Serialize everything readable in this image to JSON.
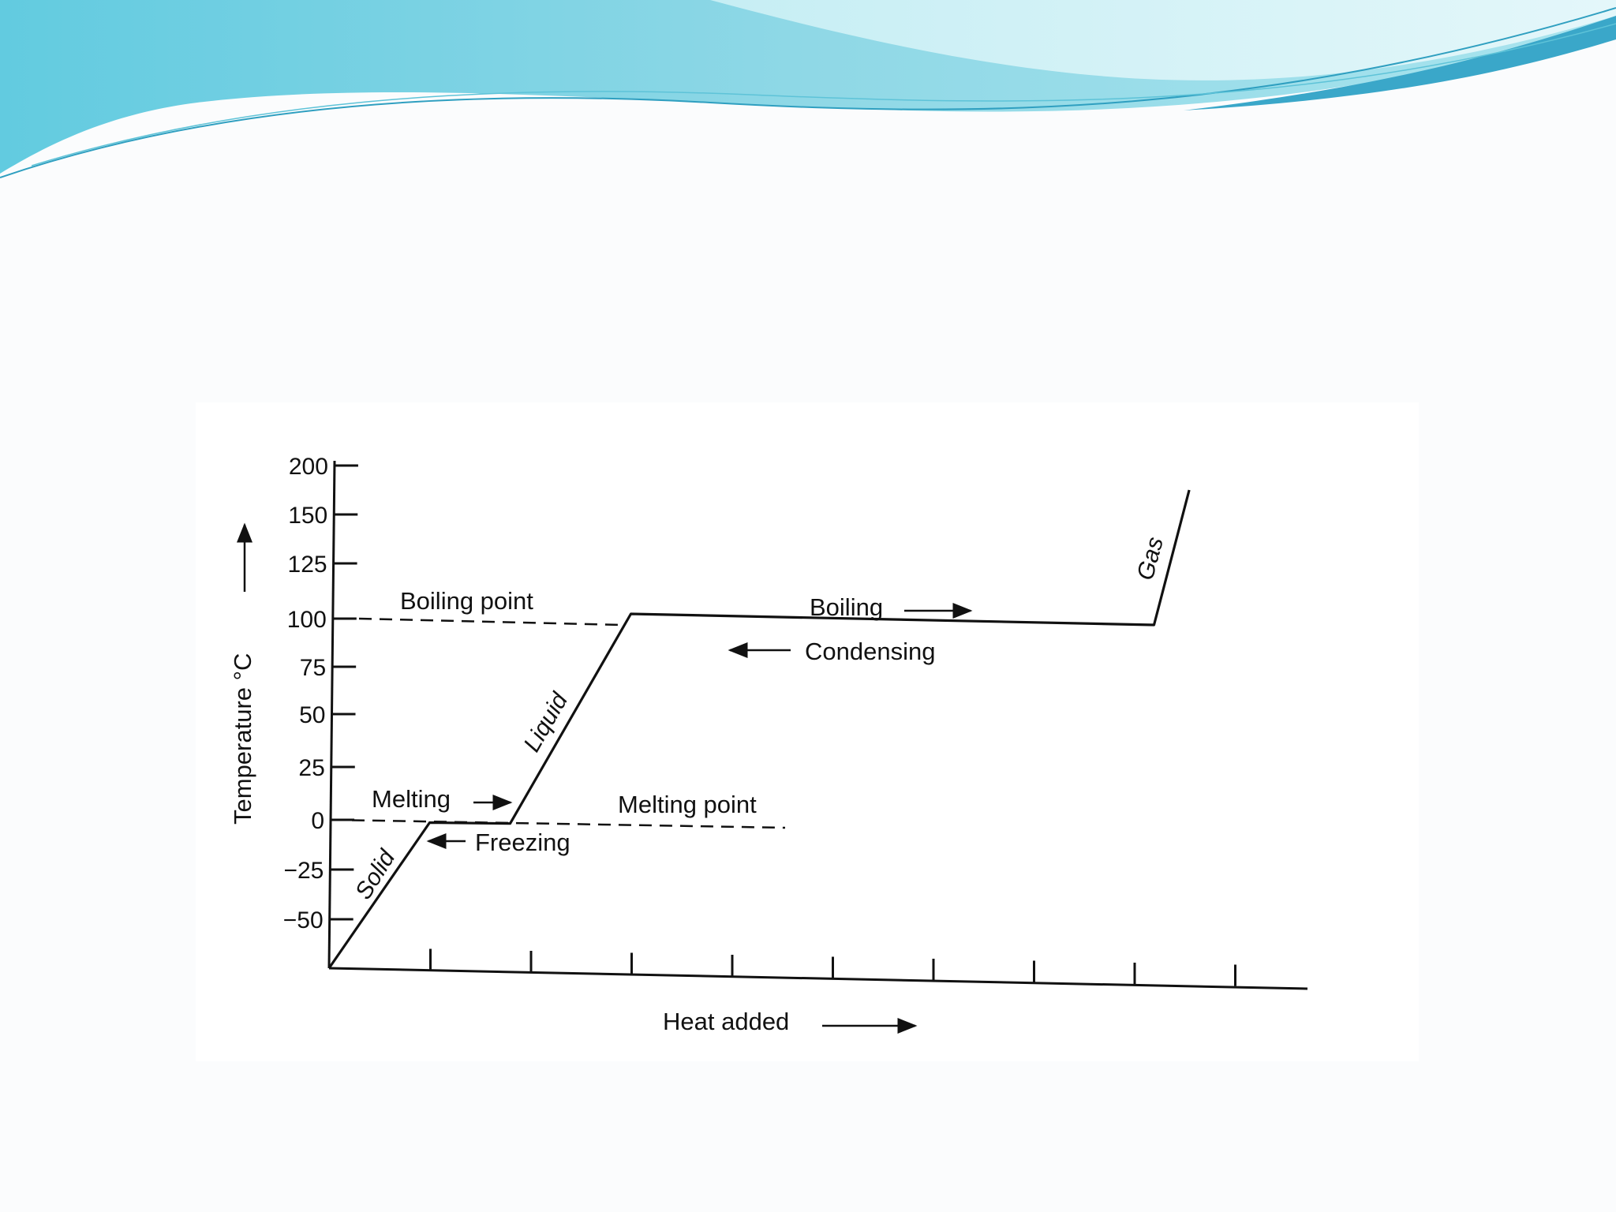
{
  "slide": {
    "banner_colors": [
      "#59c5dc",
      "#8fd8e6",
      "#3aa7c9",
      "#c6eef4"
    ]
  },
  "chart_data": {
    "type": "line",
    "title": "",
    "xlabel": "Heat added",
    "ylabel": "Temperature °C",
    "x_ticks_count": 9,
    "y_ticks": [
      200,
      150,
      125,
      100,
      75,
      50,
      25,
      0,
      -25,
      -50
    ],
    "y_tick_labels": [
      "200",
      "150",
      "125",
      "100",
      "75",
      "50",
      "25",
      "0",
      "−25",
      "−50"
    ],
    "series": [
      {
        "x": [
          0,
          1,
          1.8,
          3,
          8.2,
          8.55
        ],
        "y": [
          -75,
          0,
          0,
          100,
          100,
          175
        ]
      }
    ],
    "reference_lines": [
      {
        "label": "Boiling point",
        "y": 100
      },
      {
        "label": "Melting point",
        "y": 0
      }
    ],
    "annotations": {
      "boiling": "Boiling",
      "condensing": "Condensing",
      "melting": "Melting",
      "freezing": "Freezing"
    },
    "phase_labels": {
      "solid": "Solid",
      "liquid": "Liquid",
      "gas": "Gas"
    }
  }
}
